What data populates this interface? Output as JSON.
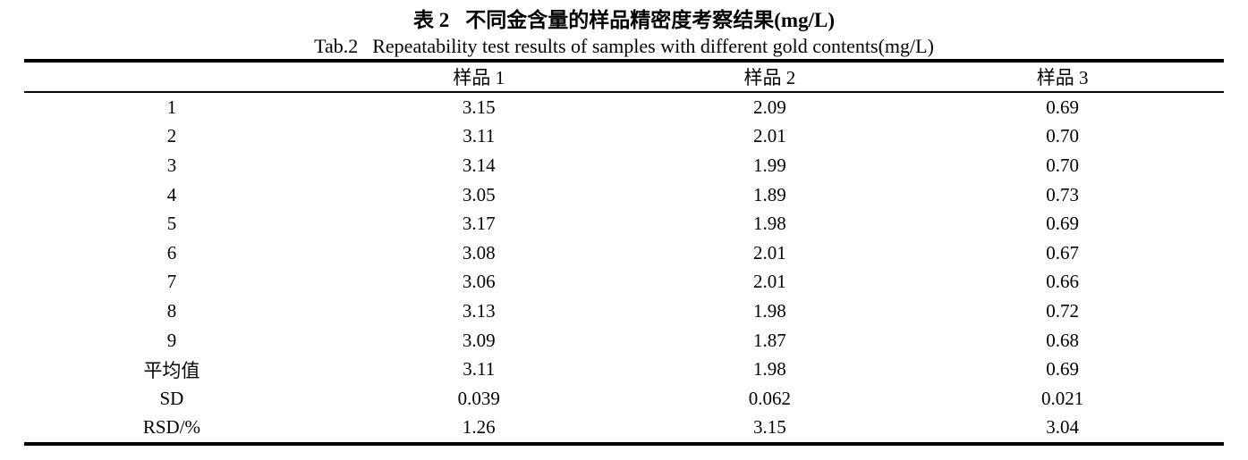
{
  "caption": {
    "zh_label": "表 2",
    "zh_text": "不同金含量的样品精密度考察结果(mg/L)",
    "en_label": "Tab.2",
    "en_text": "Repeatability test results of samples with different gold contents(mg/L)"
  },
  "table": {
    "columns": [
      "",
      "样品 1",
      "样品 2",
      "样品 3"
    ],
    "rows": [
      {
        "label": "1",
        "values": [
          "3.15",
          "2.09",
          "0.69"
        ]
      },
      {
        "label": "2",
        "values": [
          "3.11",
          "2.01",
          "0.70"
        ]
      },
      {
        "label": "3",
        "values": [
          "3.14",
          "1.99",
          "0.70"
        ]
      },
      {
        "label": "4",
        "values": [
          "3.05",
          "1.89",
          "0.73"
        ]
      },
      {
        "label": "5",
        "values": [
          "3.17",
          "1.98",
          "0.69"
        ]
      },
      {
        "label": "6",
        "values": [
          "3.08",
          "2.01",
          "0.67"
        ]
      },
      {
        "label": "7",
        "values": [
          "3.06",
          "2.01",
          "0.66"
        ]
      },
      {
        "label": "8",
        "values": [
          "3.13",
          "1.98",
          "0.72"
        ]
      },
      {
        "label": "9",
        "values": [
          "3.09",
          "1.87",
          "0.68"
        ]
      },
      {
        "label": "平均值",
        "values": [
          "3.11",
          "1.98",
          "0.69"
        ]
      },
      {
        "label": "SD",
        "values": [
          "0.039",
          "0.062",
          "0.021"
        ]
      },
      {
        "label": "RSD/%",
        "values": [
          "1.26",
          "3.15",
          "3.04"
        ]
      }
    ]
  },
  "colors": {
    "text": "#000000",
    "background": "#ffffff",
    "rule": "#000000"
  }
}
